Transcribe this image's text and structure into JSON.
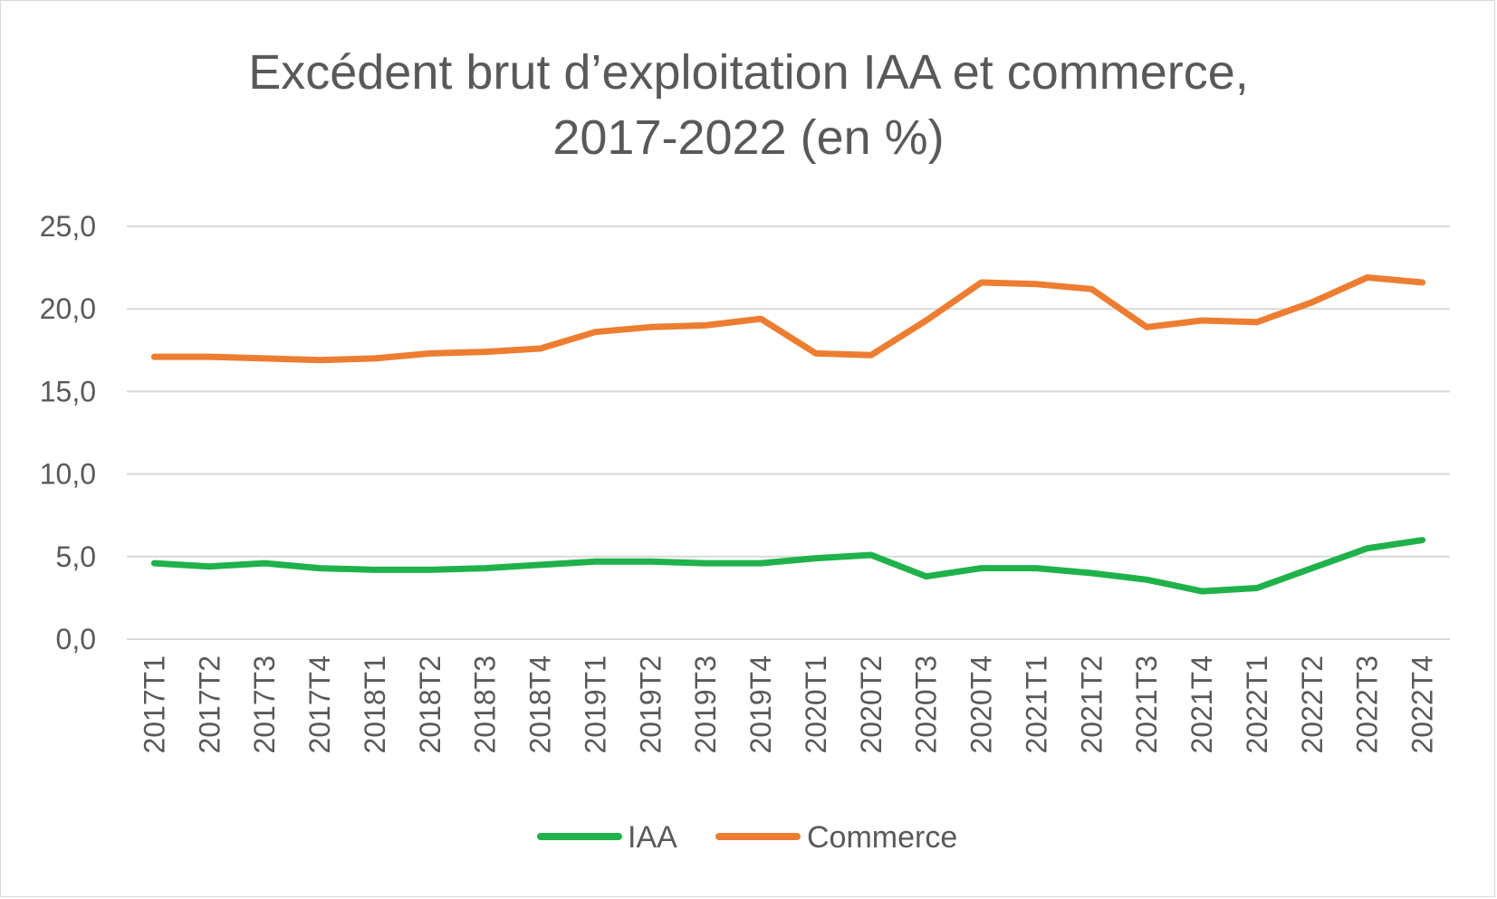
{
  "chart_data": {
    "type": "line",
    "title": [
      "Excédent brut d’exploitation IAA et commerce,",
      "2017-2022 (en %)"
    ],
    "xlabel": "",
    "ylabel": "",
    "ylim": [
      0,
      25
    ],
    "y_ticks": [
      "0,0",
      "5,0",
      "10,0",
      "15,0",
      "20,0",
      "25,0"
    ],
    "y_tick_values": [
      0,
      5,
      10,
      15,
      20,
      25
    ],
    "grid": true,
    "legend_position": "bottom",
    "categories": [
      "2017T1",
      "2017T2",
      "2017T3",
      "2017T4",
      "2018T1",
      "2018T2",
      "2018T3",
      "2018T4",
      "2019T1",
      "2019T2",
      "2019T3",
      "2019T4",
      "2020T1",
      "2020T2",
      "2020T3",
      "2020T4",
      "2021T1",
      "2021T2",
      "2021T3",
      "2021T4",
      "2022T1",
      "2022T2",
      "2022T3",
      "2022T4"
    ],
    "series": [
      {
        "name": "IAA",
        "color": "#1fb24a",
        "values": [
          4.6,
          4.4,
          4.6,
          4.3,
          4.2,
          4.2,
          4.3,
          4.5,
          4.7,
          4.7,
          4.6,
          4.6,
          4.9,
          5.1,
          3.8,
          4.3,
          4.3,
          4.0,
          3.6,
          2.9,
          3.1,
          4.3,
          5.5,
          6.0
        ]
      },
      {
        "name": "Commerce",
        "color": "#ed7d31",
        "values": [
          17.1,
          17.1,
          17.0,
          16.9,
          17.0,
          17.3,
          17.4,
          17.6,
          18.6,
          18.9,
          19.0,
          19.4,
          17.3,
          17.2,
          19.3,
          21.6,
          21.5,
          21.2,
          18.9,
          19.3,
          19.2,
          20.4,
          21.9,
          21.6
        ]
      }
    ]
  },
  "colors": {
    "gridline": "#d9d9d9",
    "text": "#595959",
    "border": "#d9d9d9"
  }
}
